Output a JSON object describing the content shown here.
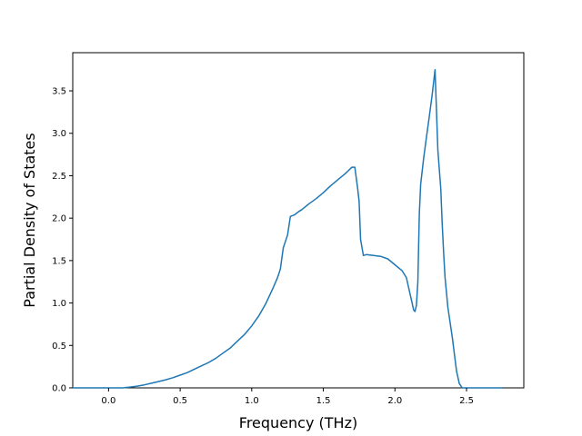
{
  "chart_data": {
    "type": "line",
    "title": "",
    "xlabel": "Frequency (THz)",
    "ylabel": "Partial Density of States",
    "xlim": [
      -0.25,
      2.9
    ],
    "ylim": [
      0.0,
      3.95
    ],
    "xticks": [
      0.0,
      0.5,
      1.0,
      1.5,
      2.0,
      2.5
    ],
    "xtick_labels": [
      "0.0",
      "0.5",
      "1.0",
      "1.5",
      "2.0",
      "2.5"
    ],
    "yticks": [
      0.0,
      0.5,
      1.0,
      1.5,
      2.0,
      2.5,
      3.0,
      3.5
    ],
    "ytick_labels": [
      "0.0",
      "0.5",
      "1.0",
      "1.5",
      "2.0",
      "2.5",
      "3.0",
      "3.5"
    ],
    "grid": false,
    "legend": null,
    "series": [
      {
        "color": "#1f77b4",
        "x": [
          -0.25,
          -0.1,
          0.0,
          0.1,
          0.15,
          0.2,
          0.25,
          0.3,
          0.35,
          0.4,
          0.45,
          0.5,
          0.55,
          0.6,
          0.65,
          0.7,
          0.75,
          0.8,
          0.85,
          0.9,
          0.95,
          1.0,
          1.05,
          1.1,
          1.15,
          1.18,
          1.2,
          1.22,
          1.25,
          1.27,
          1.3,
          1.33,
          1.35,
          1.4,
          1.45,
          1.5,
          1.55,
          1.6,
          1.65,
          1.7,
          1.72,
          1.74,
          1.75,
          1.76,
          1.78,
          1.8,
          1.85,
          1.9,
          1.95,
          2.0,
          2.05,
          2.08,
          2.1,
          2.12,
          2.13,
          2.14,
          2.15,
          2.16,
          2.17,
          2.18,
          2.19,
          2.2,
          2.22,
          2.24,
          2.26,
          2.28,
          2.3,
          2.32,
          2.33,
          2.34,
          2.35,
          2.37,
          2.4,
          2.43,
          2.45,
          2.47,
          2.48,
          2.49,
          2.5,
          2.55,
          2.6,
          2.75
        ],
        "y": [
          0.0,
          0.0,
          0.0,
          0.0,
          0.01,
          0.02,
          0.035,
          0.055,
          0.075,
          0.095,
          0.12,
          0.15,
          0.18,
          0.22,
          0.26,
          0.3,
          0.35,
          0.41,
          0.47,
          0.55,
          0.63,
          0.73,
          0.85,
          1.0,
          1.18,
          1.3,
          1.4,
          1.65,
          1.8,
          2.02,
          2.04,
          2.08,
          2.1,
          2.17,
          2.23,
          2.3,
          2.38,
          2.45,
          2.52,
          2.6,
          2.6,
          2.35,
          2.2,
          1.75,
          1.56,
          1.57,
          1.56,
          1.55,
          1.52,
          1.45,
          1.38,
          1.3,
          1.15,
          1.0,
          0.92,
          0.9,
          0.97,
          1.25,
          2.05,
          2.4,
          2.55,
          2.7,
          2.95,
          3.2,
          3.45,
          3.75,
          2.8,
          2.35,
          1.95,
          1.6,
          1.3,
          0.95,
          0.6,
          0.2,
          0.05,
          0.0,
          0.0,
          0.0,
          0.0,
          0.0,
          0.0,
          0.0
        ]
      }
    ]
  }
}
